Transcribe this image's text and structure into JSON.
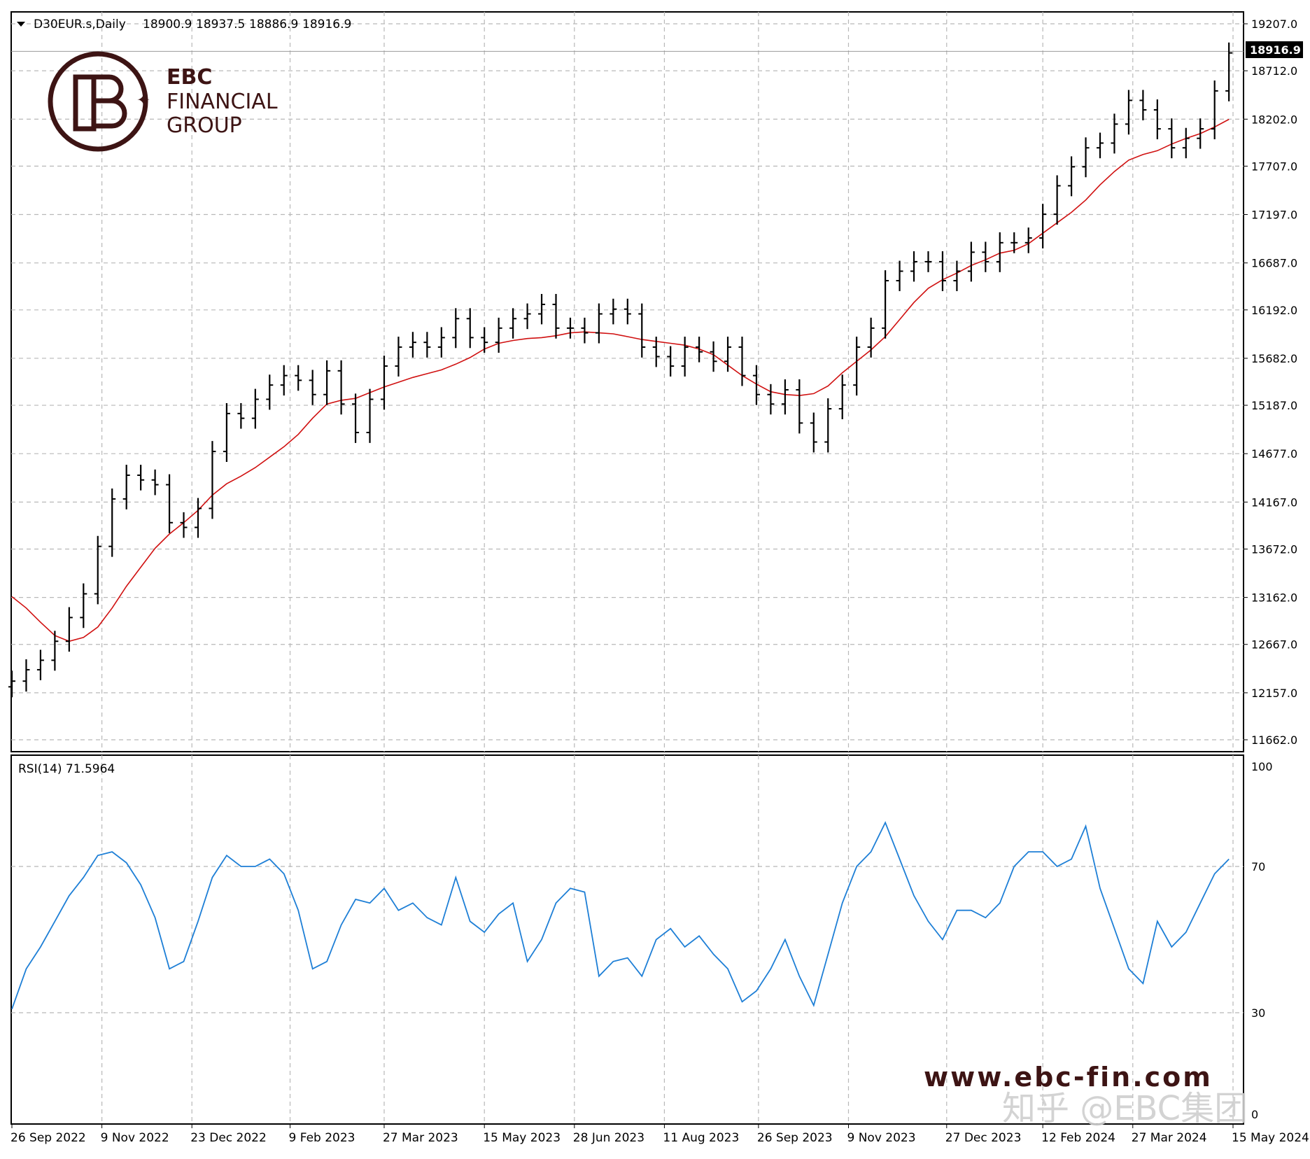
{
  "chart_data": [
    {
      "type": "line",
      "panel": "price",
      "header": {
        "symbol": "D30EUR.s,Daily",
        "ohlc": [
          "18900.9",
          "18937.5",
          "18886.9",
          "18916.9"
        ]
      },
      "y_ticks": [
        "19207.0",
        "18712.0",
        "18202.0",
        "17707.0",
        "17197.0",
        "16687.0",
        "16192.0",
        "15682.0",
        "15187.0",
        "14677.0",
        "14167.0",
        "13672.0",
        "13162.0",
        "12667.0",
        "12157.0",
        "11662.0"
      ],
      "ylim": [
        11662.0,
        19207.0
      ],
      "last_price_label": "18916.9",
      "x_ticks": [
        "26 Sep 2022",
        "9 Nov 2022",
        "23 Dec 2022",
        "9 Feb 2023",
        "27 Mar 2023",
        "15 May 2023",
        "28 Jun 2023",
        "11 Aug 2023",
        "26 Sep 2023",
        "9 Nov 2023",
        "27 Dec 2023",
        "12 Feb 2024",
        "27 Mar 2024",
        "15 May 2024"
      ],
      "grid": true,
      "series": [
        {
          "style": "ohlc-bars",
          "color": "#000000",
          "x": [
            "2022-09-26",
            "2022-10-03",
            "2022-10-10",
            "2022-10-17",
            "2022-10-24",
            "2022-10-31",
            "2022-11-07",
            "2022-11-14",
            "2022-11-21",
            "2022-11-28",
            "2022-12-05",
            "2022-12-12",
            "2022-12-19",
            "2022-12-26",
            "2023-01-02",
            "2023-01-09",
            "2023-01-16",
            "2023-01-23",
            "2023-01-30",
            "2023-02-06",
            "2023-02-13",
            "2023-02-20",
            "2023-02-27",
            "2023-03-06",
            "2023-03-13",
            "2023-03-20",
            "2023-03-27",
            "2023-04-03",
            "2023-04-10",
            "2023-04-17",
            "2023-04-24",
            "2023-05-01",
            "2023-05-08",
            "2023-05-15",
            "2023-05-22",
            "2023-05-29",
            "2023-06-05",
            "2023-06-12",
            "2023-06-19",
            "2023-06-26",
            "2023-07-03",
            "2023-07-10",
            "2023-07-17",
            "2023-07-24",
            "2023-07-31",
            "2023-08-07",
            "2023-08-14",
            "2023-08-21",
            "2023-08-28",
            "2023-09-04",
            "2023-09-11",
            "2023-09-18",
            "2023-09-25",
            "2023-10-02",
            "2023-10-09",
            "2023-10-16",
            "2023-10-23",
            "2023-10-30",
            "2023-11-06",
            "2023-11-13",
            "2023-11-20",
            "2023-11-27",
            "2023-12-04",
            "2023-12-11",
            "2023-12-18",
            "2023-12-25",
            "2024-01-01",
            "2024-01-08",
            "2024-01-15",
            "2024-01-22",
            "2024-01-29",
            "2024-02-05",
            "2024-02-12",
            "2024-02-19",
            "2024-02-26",
            "2024-03-04",
            "2024-03-11",
            "2024-03-18",
            "2024-03-25",
            "2024-04-01",
            "2024-04-08",
            "2024-04-15",
            "2024-04-22",
            "2024-04-29",
            "2024-05-06",
            "2024-05-13"
          ],
          "close": [
            12280,
            12400,
            12500,
            12700,
            12950,
            13200,
            13700,
            14200,
            14450,
            14400,
            14350,
            13950,
            13900,
            14100,
            14700,
            15100,
            15050,
            15250,
            15400,
            15500,
            15450,
            15300,
            15550,
            15200,
            14900,
            15250,
            15600,
            15800,
            15850,
            15800,
            15900,
            16100,
            15900,
            15850,
            16000,
            16100,
            16150,
            16250,
            16000,
            16000,
            15950,
            16150,
            16200,
            16150,
            15800,
            15700,
            15600,
            15800,
            15750,
            15650,
            15800,
            15500,
            15300,
            15200,
            15350,
            15000,
            14800,
            15150,
            15400,
            15800,
            16000,
            16500,
            16600,
            16700,
            16700,
            16500,
            16600,
            16800,
            16700,
            16900,
            16900,
            16950,
            17200,
            17500,
            17700,
            17900,
            17950,
            18150,
            18400,
            18300,
            18100,
            17900,
            18000,
            18100,
            18500,
            18900
          ]
        },
        {
          "name": "",
          "style": "line",
          "color": "#d01010",
          "x": [
            "2022-09-26",
            "2022-10-03",
            "2022-10-10",
            "2022-10-17",
            "2022-10-24",
            "2022-10-31",
            "2022-11-07",
            "2022-11-14",
            "2022-11-21",
            "2022-11-28",
            "2022-12-05",
            "2022-12-12",
            "2022-12-19",
            "2022-12-26",
            "2023-01-02",
            "2023-01-09",
            "2023-01-16",
            "2023-01-23",
            "2023-01-30",
            "2023-02-06",
            "2023-02-13",
            "2023-02-20",
            "2023-02-27",
            "2023-03-06",
            "2023-03-13",
            "2023-03-20",
            "2023-03-27",
            "2023-04-03",
            "2023-04-10",
            "2023-04-17",
            "2023-04-24",
            "2023-05-01",
            "2023-05-08",
            "2023-05-15",
            "2023-05-22",
            "2023-05-29",
            "2023-06-05",
            "2023-06-12",
            "2023-06-19",
            "2023-06-26",
            "2023-07-03",
            "2023-07-10",
            "2023-07-17",
            "2023-07-24",
            "2023-07-31",
            "2023-08-07",
            "2023-08-14",
            "2023-08-21",
            "2023-08-28",
            "2023-09-04",
            "2023-09-11",
            "2023-09-18",
            "2023-09-25",
            "2023-10-02",
            "2023-10-09",
            "2023-10-16",
            "2023-10-23",
            "2023-10-30",
            "2023-11-06",
            "2023-11-13",
            "2023-11-20",
            "2023-11-27",
            "2023-12-04",
            "2023-12-11",
            "2023-12-18",
            "2023-12-25",
            "2024-01-01",
            "2024-01-08",
            "2024-01-15",
            "2024-01-22",
            "2024-01-29",
            "2024-02-05",
            "2024-02-12",
            "2024-02-19",
            "2024-02-26",
            "2024-03-04",
            "2024-03-11",
            "2024-03-18",
            "2024-03-25",
            "2024-04-01",
            "2024-04-08",
            "2024-04-15",
            "2024-04-22",
            "2024-04-29",
            "2024-05-06",
            "2024-05-13"
          ],
          "values": [
            13170,
            13050,
            12900,
            12760,
            12700,
            12740,
            12850,
            13050,
            13280,
            13480,
            13680,
            13830,
            13950,
            14080,
            14240,
            14360,
            14440,
            14530,
            14640,
            14750,
            14880,
            15050,
            15200,
            15240,
            15260,
            15320,
            15380,
            15430,
            15480,
            15520,
            15560,
            15620,
            15690,
            15780,
            15840,
            15870,
            15890,
            15900,
            15920,
            15950,
            15960,
            15950,
            15940,
            15910,
            15880,
            15860,
            15840,
            15820,
            15780,
            15720,
            15610,
            15500,
            15410,
            15330,
            15300,
            15290,
            15310,
            15390,
            15530,
            15650,
            15770,
            15910,
            16090,
            16270,
            16420,
            16510,
            16580,
            16660,
            16720,
            16790,
            16820,
            16890,
            17000,
            17110,
            17220,
            17350,
            17510,
            17650,
            17770,
            17830,
            17870,
            17940,
            18000,
            18050,
            18120,
            18200
          ]
        }
      ]
    },
    {
      "type": "line",
      "panel": "indicator",
      "title": "RSI(14) 71.5964",
      "y_ticks": [
        "100",
        "70",
        "30",
        "0"
      ],
      "ylim": [
        0,
        100
      ],
      "levels": [
        70,
        30
      ],
      "grid": true,
      "series": [
        {
          "name": "RSI(14)",
          "color": "#1e7fd6",
          "x": [
            "2022-09-26",
            "2022-10-03",
            "2022-10-10",
            "2022-10-17",
            "2022-10-24",
            "2022-10-31",
            "2022-11-07",
            "2022-11-14",
            "2022-11-21",
            "2022-11-28",
            "2022-12-05",
            "2022-12-12",
            "2022-12-19",
            "2022-12-26",
            "2023-01-02",
            "2023-01-09",
            "2023-01-16",
            "2023-01-23",
            "2023-01-30",
            "2023-02-06",
            "2023-02-13",
            "2023-02-20",
            "2023-02-27",
            "2023-03-06",
            "2023-03-13",
            "2023-03-20",
            "2023-03-27",
            "2023-04-03",
            "2023-04-10",
            "2023-04-17",
            "2023-04-24",
            "2023-05-01",
            "2023-05-08",
            "2023-05-15",
            "2023-05-22",
            "2023-05-29",
            "2023-06-05",
            "2023-06-12",
            "2023-06-19",
            "2023-06-26",
            "2023-07-03",
            "2023-07-10",
            "2023-07-17",
            "2023-07-24",
            "2023-07-31",
            "2023-08-07",
            "2023-08-14",
            "2023-08-21",
            "2023-08-28",
            "2023-09-04",
            "2023-09-11",
            "2023-09-18",
            "2023-09-25",
            "2023-10-02",
            "2023-10-09",
            "2023-10-16",
            "2023-10-23",
            "2023-10-30",
            "2023-11-06",
            "2023-11-13",
            "2023-11-20",
            "2023-11-27",
            "2023-12-04",
            "2023-12-11",
            "2023-12-18",
            "2023-12-25",
            "2024-01-01",
            "2024-01-08",
            "2024-01-15",
            "2024-01-22",
            "2024-01-29",
            "2024-02-05",
            "2024-02-12",
            "2024-02-19",
            "2024-02-26",
            "2024-03-04",
            "2024-03-11",
            "2024-03-18",
            "2024-03-25",
            "2024-04-01",
            "2024-04-08",
            "2024-04-15",
            "2024-04-22",
            "2024-04-29",
            "2024-05-06",
            "2024-05-13"
          ],
          "values": [
            31,
            42,
            48,
            55,
            62,
            67,
            73,
            74,
            71,
            65,
            56,
            42,
            44,
            55,
            67,
            73,
            70,
            70,
            72,
            68,
            58,
            42,
            44,
            54,
            61,
            60,
            64,
            58,
            60,
            56,
            54,
            67,
            55,
            52,
            57,
            60,
            44,
            50,
            60,
            64,
            63,
            40,
            44,
            45,
            40,
            50,
            53,
            48,
            51,
            46,
            42,
            33,
            36,
            42,
            50,
            40,
            32,
            46,
            60,
            70,
            74,
            82,
            72,
            62,
            55,
            50,
            58,
            58,
            56,
            60,
            70,
            74,
            74,
            70,
            72,
            81,
            64,
            53,
            42,
            38,
            55,
            48,
            52,
            60,
            68,
            72
          ]
        }
      ]
    }
  ],
  "branding": {
    "logo_top": "EBC",
    "logo_mid": "FINANCIAL",
    "logo_bot": "GROUP",
    "website": "www.ebc-fin.com",
    "watermark": "知乎 @EBC集团",
    "brand_color": "#3d1414"
  }
}
